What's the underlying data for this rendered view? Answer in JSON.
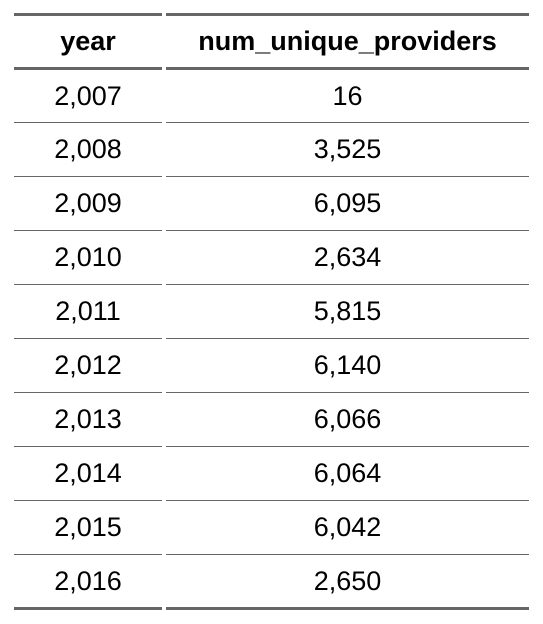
{
  "chart_data": {
    "type": "table",
    "columns": [
      "year",
      "num_unique_providers"
    ],
    "rows": [
      [
        "2,007",
        "16"
      ],
      [
        "2,008",
        "3,525"
      ],
      [
        "2,009",
        "6,095"
      ],
      [
        "2,010",
        "2,634"
      ],
      [
        "2,011",
        "5,815"
      ],
      [
        "2,012",
        "6,140"
      ],
      [
        "2,013",
        "6,066"
      ],
      [
        "2,014",
        "6,064"
      ],
      [
        "2,015",
        "6,042"
      ],
      [
        "2,016",
        "2,650"
      ]
    ]
  }
}
